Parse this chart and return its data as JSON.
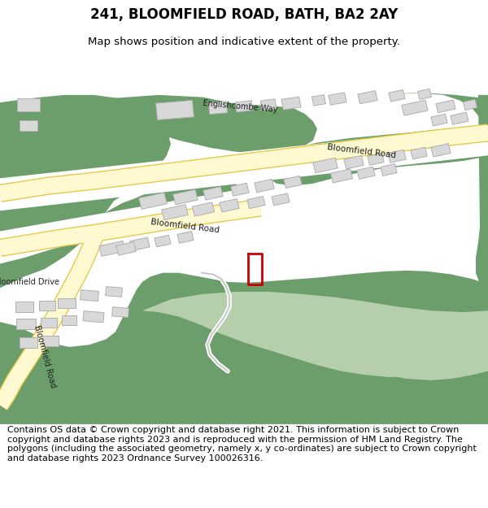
{
  "title": "241, BLOOMFIELD ROAD, BATH, BA2 2AY",
  "subtitle": "Map shows position and indicative extent of the property.",
  "footer": "Contains OS data © Crown copyright and database right 2021. This information is subject to Crown copyright and database rights 2023 and is reproduced with the permission of HM Land Registry. The polygons (including the associated geometry, namely x, y co-ordinates) are subject to Crown copyright and database rights 2023 Ordnance Survey 100026316.",
  "bg_color": "#ffffff",
  "map_bg": "#f7f4ef",
  "green_dark": "#6b9e6b",
  "green_light": "#b5ceac",
  "road_fill": "#fef9d0",
  "road_edge": "#e8c84a",
  "building_fill": "#d8d8d8",
  "building_edge": "#b0b0b0",
  "plot_color": "#cc0000",
  "title_fontsize": 12,
  "subtitle_fontsize": 9.5,
  "footer_fontsize": 8.0
}
